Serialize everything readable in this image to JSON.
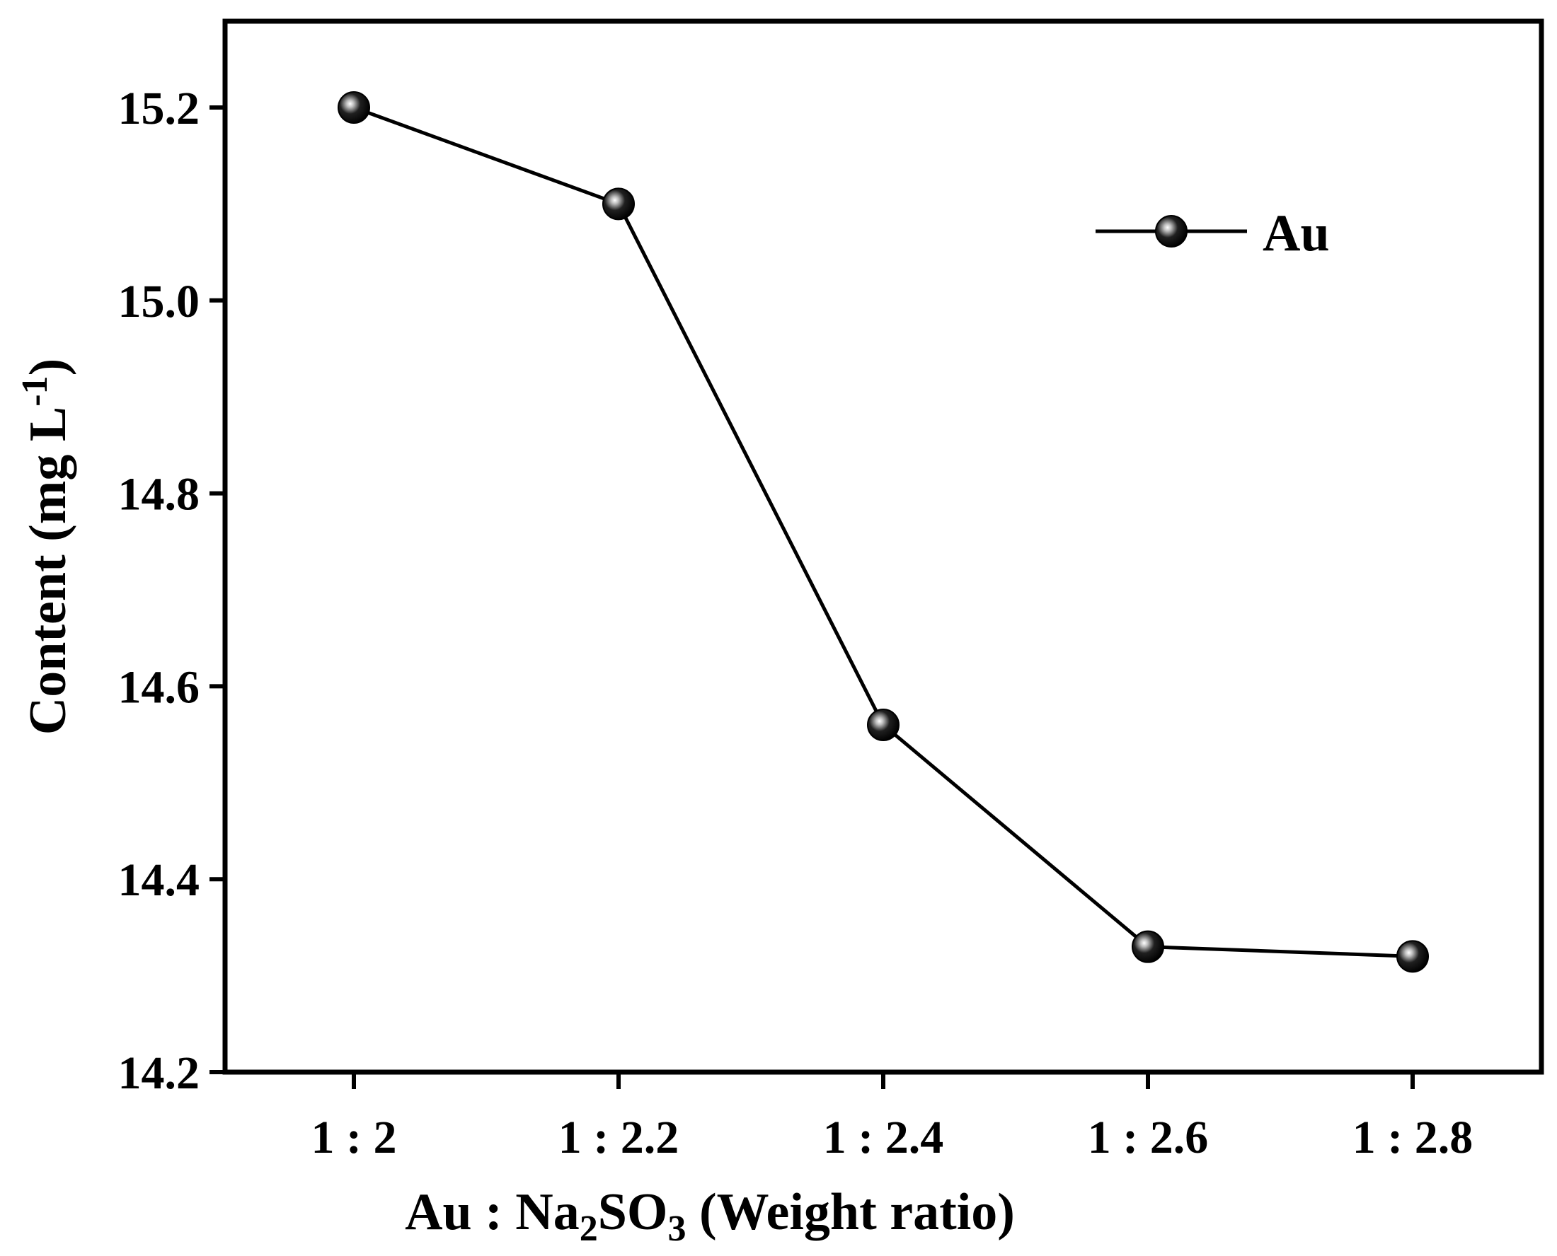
{
  "chart_data": {
    "type": "line",
    "categories": [
      "1 : 2",
      "1 : 2.2",
      "1 : 2.4",
      "1 : 2.6",
      "1 : 2.8"
    ],
    "series": [
      {
        "name": "Au",
        "values": [
          15.2,
          15.1,
          14.56,
          14.33,
          14.32
        ],
        "color": "#000000"
      }
    ],
    "ylim": [
      14.2,
      15.3
    ],
    "yticks": [
      14.2,
      14.4,
      14.6,
      14.8,
      15.0,
      15.2
    ],
    "ytick_labels": [
      "14.2",
      "14.4",
      "14.6",
      "14.8",
      "15.0",
      "15.2"
    ],
    "xlabel": {
      "prefix": "Au : Na",
      "sub1": "2",
      "mid": "SO",
      "sub2": "3",
      "suffix": " (Weight ratio)"
    },
    "ylabel": {
      "main": "Content (mg L",
      "sup": "-1",
      "close": ")"
    },
    "grid": false,
    "legend_position": "top-right",
    "marker": "sphere"
  }
}
